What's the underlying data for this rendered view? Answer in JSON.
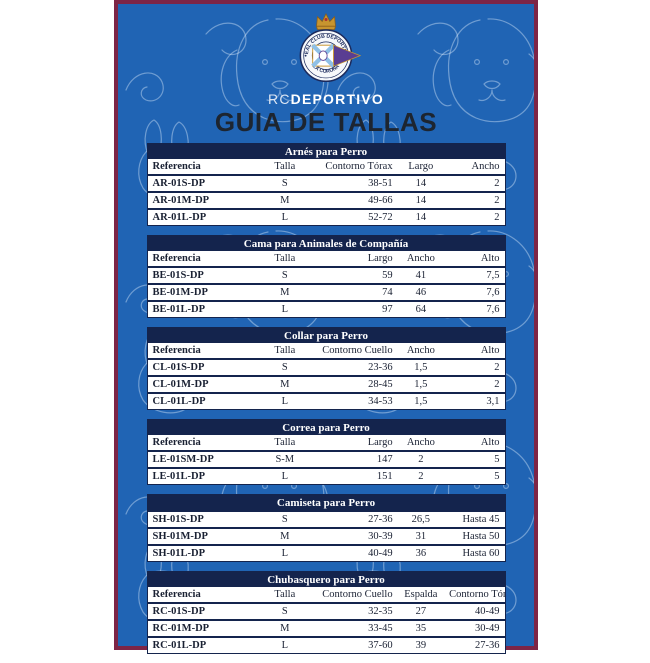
{
  "brand": {
    "prefix": "RC",
    "rest": "DEPORTIVO"
  },
  "main_title": "GUIA DE TALLAS",
  "crest": {
    "top_text": "REAL CLUB DEPORTIVO",
    "bottom_text": "LA CORUÑA"
  },
  "colors": {
    "card_background": "#2064b4",
    "card_border": "#7d2546",
    "table_navy": "#14244d",
    "crest_purple": "#5a3d92",
    "crest_gold": "#c8952f",
    "crest_saltire_blue": "#8fc0e6"
  },
  "tables": [
    {
      "title": "Arnés para Perro",
      "headers": [
        "Referencia",
        "Talla",
        "Contorno Tórax",
        "Largo",
        "Ancho"
      ],
      "rows": [
        [
          "AR-01S-DP",
          "S",
          "38-51",
          "14",
          "2"
        ],
        [
          "AR-01M-DP",
          "M",
          "49-66",
          "14",
          "2"
        ],
        [
          "AR-01L-DP",
          "L",
          "52-72",
          "14",
          "2"
        ]
      ]
    },
    {
      "title": "Cama para Animales de Compañía",
      "headers": [
        "Referencia",
        "Talla",
        "Largo",
        "Ancho",
        "Alto"
      ],
      "rows": [
        [
          "BE-01S-DP",
          "S",
          "59",
          "41",
          "7,5"
        ],
        [
          "BE-01M-DP",
          "M",
          "74",
          "46",
          "7,6"
        ],
        [
          "BE-01L-DP",
          "L",
          "97",
          "64",
          "7,6"
        ]
      ]
    },
    {
      "title": "Collar para Perro",
      "headers": [
        "Referencia",
        "Talla",
        "Contorno Cuello",
        "Ancho",
        "Alto"
      ],
      "rows": [
        [
          "CL-01S-DP",
          "S",
          "23-36",
          "1,5",
          "2"
        ],
        [
          "CL-01M-DP",
          "M",
          "28-45",
          "1,5",
          "2"
        ],
        [
          "CL-01L-DP",
          "L",
          "34-53",
          "1,5",
          "3,1"
        ]
      ]
    },
    {
      "title": "Correa para Perro",
      "headers": [
        "Referencia",
        "Talla",
        "Largo",
        "Ancho",
        "Alto"
      ],
      "rows": [
        [
          "LE-01SM-DP",
          "S-M",
          "147",
          "2",
          "5"
        ],
        [
          "LE-01L-DP",
          "L",
          "151",
          "2",
          "5"
        ]
      ]
    },
    {
      "title": "Camiseta para Perro",
      "headers": [],
      "rows": [
        [
          "SH-01S-DP",
          "S",
          "27-36",
          "26,5",
          "Hasta 45"
        ],
        [
          "SH-01M-DP",
          "M",
          "30-39",
          "31",
          "Hasta 50"
        ],
        [
          "SH-01L-DP",
          "L",
          "40-49",
          "36",
          "Hasta 60"
        ]
      ]
    },
    {
      "title": "Chubasquero para Perro",
      "headers": [
        "Referencia",
        "Talla",
        "Contorno Cuello",
        "Espalda",
        "Contorno Tórax"
      ],
      "rows": [
        [
          "RC-01S-DP",
          "S",
          "32-35",
          "27",
          "40-49"
        ],
        [
          "RC-01M-DP",
          "M",
          "33-45",
          "35",
          "30-49"
        ],
        [
          "RC-01L-DP",
          "L",
          "37-60",
          "39",
          "27-36"
        ]
      ]
    }
  ]
}
